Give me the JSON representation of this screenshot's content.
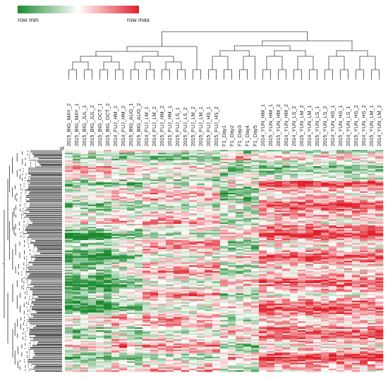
{
  "chart_data": {
    "type": "heatmap",
    "legend": {
      "min_label": "row min",
      "max_label": "row max",
      "colors": [
        "#1a8a2e",
        "#ffffff",
        "#e0202a"
      ],
      "placement": "top-left"
    },
    "id_column_label": "id",
    "columns": [
      "2015_BIG_MAY_2",
      "2015_BIG_MAY_1",
      "2015_BIG_JUL_1",
      "2015_BIG_JUL_2",
      "2015_BIG_OCT_1",
      "2015_BIG_OCT_2",
      "2014_FUJ_HM_1",
      "2014_FUJ_HM_2",
      "2015_BIG_AUG_1",
      "2015_BIG_AUG_2",
      "2014_FUJ_LM_1",
      "2014_FUJ_LM_2",
      "2015_FUJ_HM_2",
      "2015_FUJ_HM_1",
      "2015_FUJ_LS_1",
      "2015_FUJ_LS_2",
      "2015_FUJ_LM_2",
      "2015_FUJ_LM_1",
      "2015_FUJ_HS_1",
      "2015_FUJ_HS_2",
      "F1_Day1",
      "F1_Day2",
      "F1_Day3",
      "F1_Day4",
      "F1_Day5",
      "2014_YUN_HM_1",
      "2015_YUN_HM_1",
      "2015_YUN_HM_2",
      "2014_YUN_HM_2",
      "2014_YUN_LS_2",
      "2015_YUN_LM_2",
      "2014_YUN_LM_1",
      "2015_YUN_LS_1",
      "2015_YUN_LS_2",
      "2014_YUN_HS_1",
      "2015_YUN_HS_1",
      "2014_YUN_LS_1",
      "2015_YUN_HS_2",
      "2014_YUN_HS_2",
      "2015_YUN_LM_1",
      "2014_YUN_LM_2"
    ],
    "column_dendrogram": [
      [
        0,
        1
      ],
      [
        2,
        3
      ],
      [
        4,
        5
      ],
      [
        6,
        7
      ],
      [
        8,
        9
      ],
      [
        10,
        11
      ],
      [
        12,
        13
      ],
      [
        14,
        15
      ],
      [
        16,
        17
      ],
      [
        18,
        19
      ],
      [
        20,
        21
      ],
      [
        22,
        23
      ],
      [
        25,
        26
      ],
      [
        27,
        28
      ],
      [
        29,
        30
      ],
      [
        31,
        32
      ],
      [
        33,
        34
      ],
      [
        35,
        36
      ],
      [
        37,
        38
      ],
      [
        39,
        40
      ]
    ],
    "row_count": 1200,
    "grid": false
  }
}
